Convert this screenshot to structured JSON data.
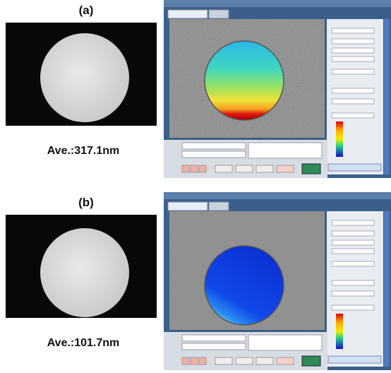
{
  "figure": {
    "panels": [
      {
        "label": "(a)",
        "caption": "Ave.:317.1nm"
      },
      {
        "label": "(b)",
        "caption": "Ave.:101.7nm"
      }
    ]
  }
}
